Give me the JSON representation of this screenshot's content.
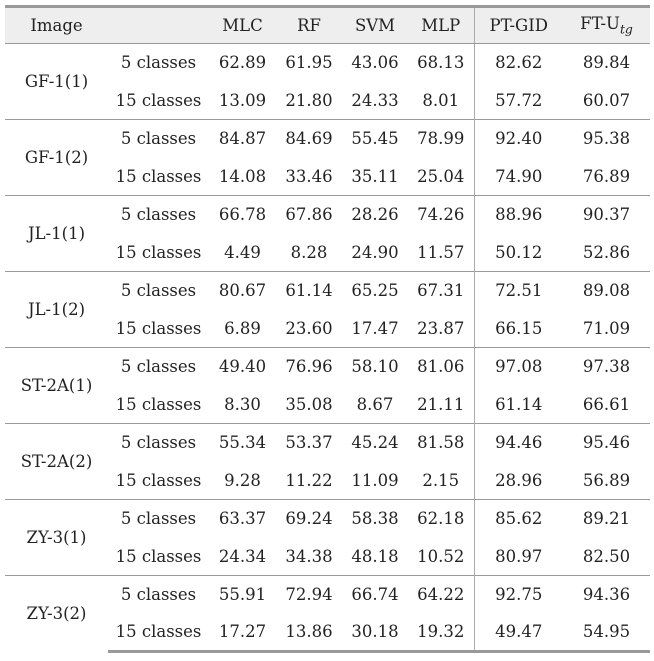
{
  "header": {
    "image": "Image",
    "mlc": "MLC",
    "rf": "RF",
    "svm": "SVM",
    "mlp": "MLP",
    "ptgid": "PT-GID",
    "ft_main": "FT-U",
    "ft_sub": "tg"
  },
  "groups": [
    {
      "name": "GF-1(1)",
      "rows": [
        {
          "classes": "5 classes",
          "mlc": "62.89",
          "rf": "61.95",
          "svm": "43.06",
          "mlp": "68.13",
          "ptgid": "82.62",
          "ft": "89.84"
        },
        {
          "classes": "15 classes",
          "mlc": "13.09",
          "rf": "21.80",
          "svm": "24.33",
          "mlp": "8.01",
          "ptgid": "57.72",
          "ft": "60.07"
        }
      ]
    },
    {
      "name": "GF-1(2)",
      "rows": [
        {
          "classes": "5 classes",
          "mlc": "84.87",
          "rf": "84.69",
          "svm": "55.45",
          "mlp": "78.99",
          "ptgid": "92.40",
          "ft": "95.38"
        },
        {
          "classes": "15 classes",
          "mlc": "14.08",
          "rf": "33.46",
          "svm": "35.11",
          "mlp": "25.04",
          "ptgid": "74.90",
          "ft": "76.89"
        }
      ]
    },
    {
      "name": "JL-1(1)",
      "rows": [
        {
          "classes": "5 classes",
          "mlc": "66.78",
          "rf": "67.86",
          "svm": "28.26",
          "mlp": "74.26",
          "ptgid": "88.96",
          "ft": "90.37"
        },
        {
          "classes": "15 classes",
          "mlc": "4.49",
          "rf": "8.28",
          "svm": "24.90",
          "mlp": "11.57",
          "ptgid": "50.12",
          "ft": "52.86"
        }
      ]
    },
    {
      "name": "JL-1(2)",
      "rows": [
        {
          "classes": "5 classes",
          "mlc": "80.67",
          "rf": "61.14",
          "svm": "65.25",
          "mlp": "67.31",
          "ptgid": "72.51",
          "ft": "89.08"
        },
        {
          "classes": "15 classes",
          "mlc": "6.89",
          "rf": "23.60",
          "svm": "17.47",
          "mlp": "23.87",
          "ptgid": "66.15",
          "ft": "71.09"
        }
      ]
    },
    {
      "name": "ST-2A(1)",
      "rows": [
        {
          "classes": "5 classes",
          "mlc": "49.40",
          "rf": "76.96",
          "svm": "58.10",
          "mlp": "81.06",
          "ptgid": "97.08",
          "ft": "97.38"
        },
        {
          "classes": "15 classes",
          "mlc": "8.30",
          "rf": "35.08",
          "svm": "8.67",
          "mlp": "21.11",
          "ptgid": "61.14",
          "ft": "66.61"
        }
      ]
    },
    {
      "name": "ST-2A(2)",
      "rows": [
        {
          "classes": "5 classes",
          "mlc": "55.34",
          "rf": "53.37",
          "svm": "45.24",
          "mlp": "81.58",
          "ptgid": "94.46",
          "ft": "95.46"
        },
        {
          "classes": "15 classes",
          "mlc": "9.28",
          "rf": "11.22",
          "svm": "11.09",
          "mlp": "2.15",
          "ptgid": "28.96",
          "ft": "56.89"
        }
      ]
    },
    {
      "name": "ZY-3(1)",
      "rows": [
        {
          "classes": "5 classes",
          "mlc": "63.37",
          "rf": "69.24",
          "svm": "58.38",
          "mlp": "62.18",
          "ptgid": "85.62",
          "ft": "89.21"
        },
        {
          "classes": "15 classes",
          "mlc": "24.34",
          "rf": "34.38",
          "svm": "48.18",
          "mlp": "10.52",
          "ptgid": "80.97",
          "ft": "82.50"
        }
      ]
    },
    {
      "name": "ZY-3(2)",
      "rows": [
        {
          "classes": "5 classes",
          "mlc": "55.91",
          "rf": "72.94",
          "svm": "66.74",
          "mlp": "64.22",
          "ptgid": "92.75",
          "ft": "94.36"
        },
        {
          "classes": "15 classes",
          "mlc": "17.27",
          "rf": "13.86",
          "svm": "30.18",
          "mlp": "19.32",
          "ptgid": "49.47",
          "ft": "54.95"
        }
      ]
    }
  ]
}
